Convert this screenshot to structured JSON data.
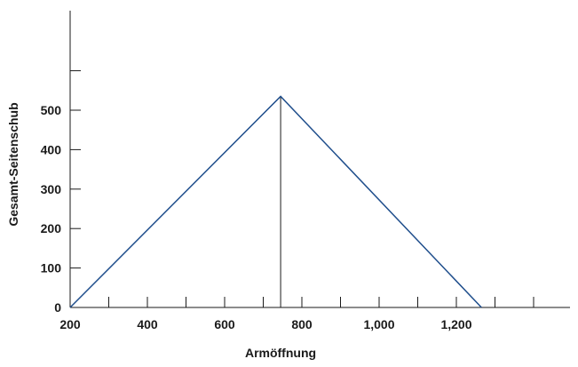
{
  "chart_data": {
    "type": "line",
    "title": "",
    "xlabel": "Armöffnung",
    "ylabel": "Gesamt-Seitenschub",
    "xlim": [
      200,
      1500
    ],
    "ylim": [
      0,
      700
    ],
    "x_ticks": [
      200,
      300,
      400,
      500,
      600,
      700,
      800,
      900,
      1000,
      1100,
      1200,
      1300,
      1400
    ],
    "x_tick_labels": [
      {
        "value": 200,
        "label": "200"
      },
      {
        "value": 400,
        "label": "400"
      },
      {
        "value": 600,
        "label": "600"
      },
      {
        "value": 800,
        "label": "800"
      },
      {
        "value": 1000,
        "label": "1,000"
      },
      {
        "value": 1200,
        "label": "1,200"
      }
    ],
    "y_ticks": [
      0,
      100,
      200,
      300,
      400,
      500,
      600
    ],
    "y_tick_labels": [
      {
        "value": 0,
        "label": "0"
      },
      {
        "value": 100,
        "label": "100"
      },
      {
        "value": 200,
        "label": "200"
      },
      {
        "value": 300,
        "label": "300"
      },
      {
        "value": 400,
        "label": "400"
      },
      {
        "value": 500,
        "label": "500"
      }
    ],
    "grid": false,
    "series": [
      {
        "color": "#1f4e8c",
        "x": [
          200,
          745,
          1265
        ],
        "y": [
          0,
          535,
          0
        ]
      }
    ],
    "peak_line": {
      "x": 745,
      "y": 535,
      "color": "#1a1a1a"
    }
  }
}
